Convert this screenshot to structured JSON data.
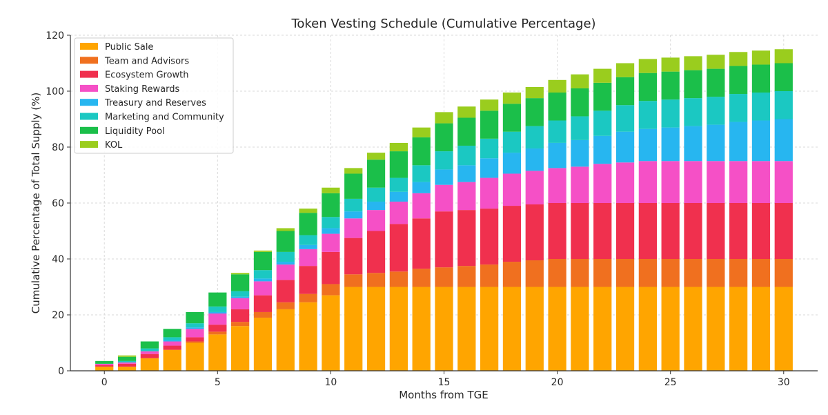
{
  "chart_data": {
    "type": "stacked-bar",
    "title": "Token Vesting Schedule (Cumulative Percentage)",
    "xlabel": "Months from TGE",
    "ylabel": "Cumulative Percentage of Total Supply (%)",
    "ylim": [
      0,
      120
    ],
    "xlim": [
      -1.5,
      31.5
    ],
    "yticks": [
      0,
      20,
      40,
      60,
      80,
      100,
      120
    ],
    "xticks": [
      0,
      5,
      10,
      15,
      20,
      25,
      30
    ],
    "grid": true,
    "legend_position": "top-left",
    "x": [
      0,
      1,
      2,
      3,
      4,
      5,
      6,
      7,
      8,
      9,
      10,
      11,
      12,
      13,
      14,
      15,
      16,
      17,
      18,
      19,
      20,
      21,
      22,
      23,
      24,
      25,
      26,
      27,
      28,
      29,
      30
    ],
    "series": [
      {
        "name": "Public Sale",
        "color": "#FFA500",
        "values": [
          1.5,
          1.5,
          4.5,
          7.5,
          10,
          13,
          16,
          19,
          22,
          24.5,
          27,
          30,
          30,
          30,
          30,
          30,
          30,
          30,
          30,
          30,
          30,
          30,
          30,
          30,
          30,
          30,
          30,
          30,
          30,
          30,
          30
        ]
      },
      {
        "name": "Team and Advisors",
        "color": "#F0701F",
        "values": [
          0,
          0,
          0,
          0,
          0.5,
          1,
          1.5,
          2,
          2.5,
          3,
          4,
          4.5,
          5,
          5.5,
          6.5,
          7,
          7.5,
          8,
          9,
          9.5,
          10,
          10,
          10,
          10,
          10,
          10,
          10,
          10,
          10,
          10,
          10
        ]
      },
      {
        "name": "Ecosystem Growth",
        "color": "#F0304E",
        "values": [
          0.5,
          1,
          1.5,
          1.5,
          1.5,
          2.5,
          4.5,
          6,
          8,
          10,
          11.5,
          13,
          15,
          17,
          18,
          20,
          20,
          20,
          20,
          20,
          20,
          20,
          20,
          20,
          20,
          20,
          20,
          20,
          20,
          20,
          20
        ]
      },
      {
        "name": "Staking Rewards",
        "color": "#F550C6",
        "values": [
          0.5,
          0.5,
          1,
          1.5,
          3,
          4,
          4,
          5,
          5.5,
          6,
          6.5,
          7,
          7.5,
          8,
          9,
          9.5,
          10,
          11,
          11.5,
          12,
          12.5,
          13,
          14,
          14.5,
          15,
          15,
          15,
          15,
          15,
          15,
          15
        ]
      },
      {
        "name": "Treasury and Reserves",
        "color": "#27B6F0",
        "values": [
          0,
          0,
          0,
          0.5,
          0.5,
          0.5,
          0.5,
          1,
          1,
          1.5,
          2,
          2.5,
          3,
          3.5,
          4,
          5.5,
          6,
          7,
          7.5,
          8,
          9,
          9.5,
          10,
          11,
          11.5,
          12,
          12.5,
          13,
          14,
          14.5,
          15
        ]
      },
      {
        "name": "Marketing and Community",
        "color": "#1BC8C2",
        "values": [
          0,
          0.5,
          1,
          1,
          1.5,
          2,
          2,
          3,
          3.5,
          3.5,
          4,
          4.5,
          5,
          5,
          6,
          6.5,
          7,
          7,
          7.5,
          8,
          8,
          8.5,
          9,
          9.5,
          10,
          10,
          10,
          10,
          10,
          10,
          10
        ]
      },
      {
        "name": "Liquidity Pool",
        "color": "#1BBF4A",
        "values": [
          1,
          1.5,
          2.5,
          3,
          4,
          5,
          6,
          6.5,
          7.5,
          8,
          8.5,
          9,
          10,
          9.5,
          10,
          10,
          10,
          10,
          10,
          10,
          10,
          10,
          10,
          10,
          10,
          10,
          10,
          10,
          10,
          10,
          10
        ]
      },
      {
        "name": "KOL",
        "color": "#9ACD1E",
        "values": [
          0,
          0.5,
          0,
          0,
          0,
          0,
          0.5,
          0.5,
          1,
          1.5,
          2,
          2,
          2.5,
          3,
          3.5,
          4,
          4,
          4,
          4,
          4,
          4.5,
          5,
          5,
          5,
          5,
          5,
          5,
          5,
          5,
          5,
          5
        ]
      }
    ]
  }
}
